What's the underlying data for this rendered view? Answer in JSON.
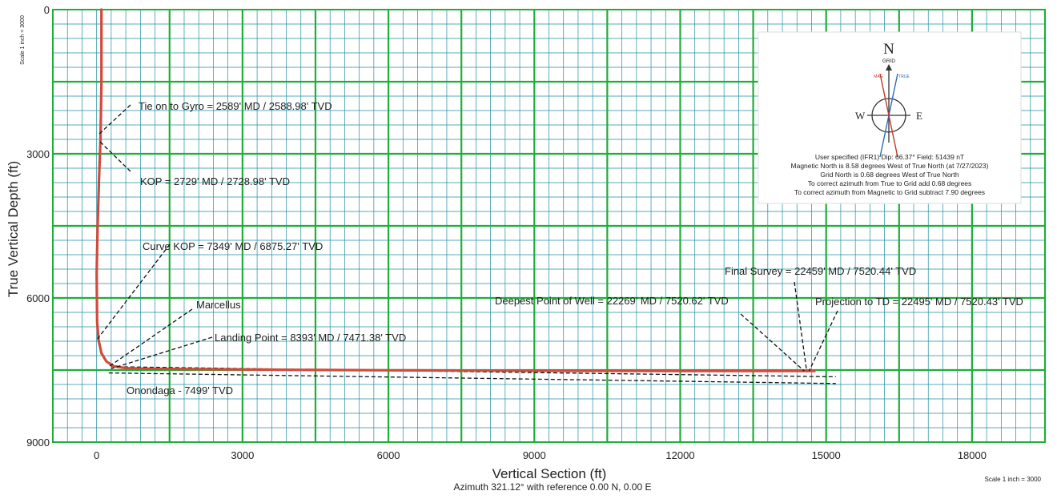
{
  "chart_data": {
    "type": "line",
    "x_label": "Vertical Section (ft)",
    "x_sublabel": "Azimuth 321.12° with reference 0.00 N, 0.00 E",
    "y_label": "True Vertical Depth (ft)",
    "scale_note_left": "Scale 1 inch = 3000",
    "scale_note_right": "Scale 1 inch = 3000",
    "xlim": [
      -900,
      19500
    ],
    "ylim": [
      0,
      9000
    ],
    "y_inverted": true,
    "x_ticks": [
      "0",
      "3000",
      "6000",
      "9000",
      "12000",
      "15000",
      "18000"
    ],
    "x_tick_values": [
      0,
      3000,
      6000,
      9000,
      12000,
      15000,
      18000
    ],
    "y_ticks": [
      "0",
      "3000",
      "6000",
      "9000"
    ],
    "y_tick_values": [
      0,
      3000,
      6000,
      9000
    ],
    "grid": true,
    "grid_color": "#1fae3a",
    "minor_grid_color": "#1e8fa0",
    "well_path_color": "#d24a3c",
    "series": [
      {
        "x": [
          100,
          100,
          80,
          50,
          20,
          0,
          10,
          40,
          100,
          200,
          350,
          600,
          1000,
          2000,
          4000,
          6000,
          8000,
          10000,
          12000,
          14000,
          14600,
          14760
        ],
        "y": [
          0,
          1500,
          2700,
          3500,
          4500,
          5500,
          6500,
          6875,
          7150,
          7320,
          7420,
          7460,
          7471,
          7480,
          7495,
          7505,
          7512,
          7517,
          7520,
          7520.6,
          7520.4,
          7520.4
        ]
      }
    ],
    "formation_lines": [
      {
        "x": [
          300,
          15200
        ],
        "y": [
          7430,
          7640
        ]
      },
      {
        "x": [
          250,
          15200
        ],
        "y": [
          7560,
          7780
        ]
      }
    ],
    "annotations": [
      {
        "text": "Tie on to Gyro = 2589' MD / 2588.98' TVD",
        "target": [
          50,
          2589
        ]
      },
      {
        "text": "KOP = 2729' MD / 2728.98' TVD",
        "target": [
          50,
          2729
        ]
      },
      {
        "text": "Curve KOP = 7349' MD / 6875.27' TVD",
        "target": [
          0,
          6875
        ]
      },
      {
        "text": "Marcellus",
        "target": [
          250,
          7430
        ]
      },
      {
        "text": "Landing Point = 8393' MD / 7471.38' TVD",
        "target": [
          300,
          7471
        ]
      },
      {
        "text": "Onondaga - 7499' TVD",
        "target": [
          300,
          7499
        ]
      },
      {
        "text": "Deepest Point of Well = 22269' MD / 7520.62' TVD",
        "target": [
          14550,
          7520
        ]
      },
      {
        "text": "Final Survey = 22459' MD / 7520.44' TVD",
        "target": [
          14600,
          7520
        ]
      },
      {
        "text": "Projection to TD = 22495' MD / 7520.43' TVD",
        "target": [
          14650,
          7520
        ]
      }
    ],
    "north_legend": {
      "north": "N",
      "grid": "GRID",
      "mag": "MAG",
      "true": "TRUE",
      "west": "W",
      "east": "E",
      "lines": [
        "User specified (IFR1) Dip: 66.37°  Field: 51439 nT",
        "Magnetic North is 8.58 degrees West of True North (at 7/27/2023)",
        "Grid North is 0.68 degrees West of True North",
        "To correct azimuth from True to Grid add 0.68 degrees",
        "To correct azimuth from Magnetic to Grid subtract 7.90 degrees"
      ]
    }
  }
}
